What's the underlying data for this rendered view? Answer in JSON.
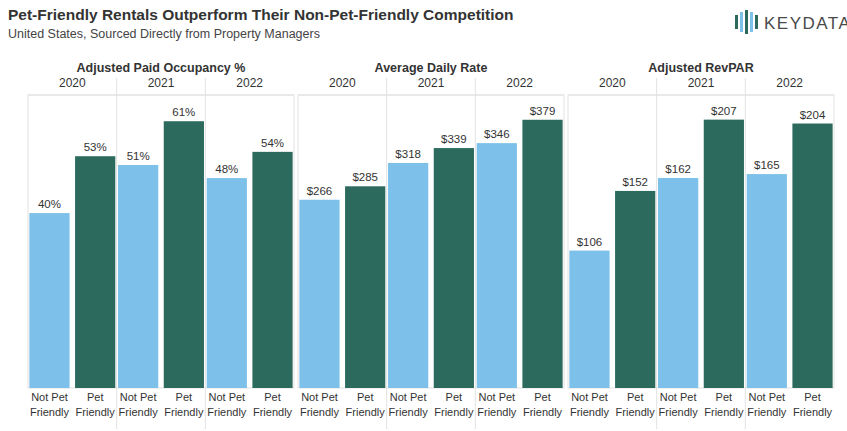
{
  "header": {
    "title": "Pet-Friendly Rentals Outperform Their Non-Pet-Friendly Competition",
    "subtitle": "United States, Sourced Directly from Property Managers",
    "logo": "KEYDATA™"
  },
  "chart_data": [
    {
      "type": "bar",
      "title": "Adjusted Paid Occupancy %",
      "categories": [
        "2020",
        "2021",
        "2022"
      ],
      "series": [
        {
          "name": "Not Pet Friendly",
          "color": "#7dc0ea",
          "values": [
            40,
            51,
            48
          ],
          "value_labels": [
            "40%",
            "51%",
            "48%"
          ]
        },
        {
          "name": "Pet Friendly",
          "color": "#2b6a5d",
          "values": [
            53,
            61,
            54
          ],
          "value_labels": [
            "53%",
            "61%",
            "54%"
          ]
        }
      ],
      "ylim": [
        0,
        67
      ],
      "tick_labels": "x",
      "data_labels": true
    },
    {
      "type": "bar",
      "title": "Average Daily Rate",
      "categories": [
        "2020",
        "2021",
        "2022"
      ],
      "series": [
        {
          "name": "Not Pet Friendly",
          "color": "#7dc0ea",
          "values": [
            266,
            318,
            346
          ],
          "value_labels": [
            "$266",
            "$318",
            "$346"
          ]
        },
        {
          "name": "Pet Friendly",
          "color": "#2b6a5d",
          "values": [
            285,
            339,
            379
          ],
          "value_labels": [
            "$285",
            "$339",
            "$379"
          ]
        }
      ],
      "ylim": [
        0,
        414
      ],
      "tick_labels": "x",
      "data_labels": true
    },
    {
      "type": "bar",
      "title": "Adjusted RevPAR",
      "categories": [
        "2020",
        "2021",
        "2022"
      ],
      "series": [
        {
          "name": "Not Pet Friendly",
          "color": "#7dc0ea",
          "values": [
            106,
            162,
            165
          ],
          "value_labels": [
            "$106",
            "$162",
            "$165"
          ]
        },
        {
          "name": "Pet Friendly",
          "color": "#2b6a5d",
          "values": [
            152,
            207,
            204
          ],
          "value_labels": [
            "$152",
            "$207",
            "$204"
          ]
        }
      ],
      "ylim": [
        0,
        226
      ],
      "tick_labels": "x",
      "data_labels": true
    }
  ]
}
